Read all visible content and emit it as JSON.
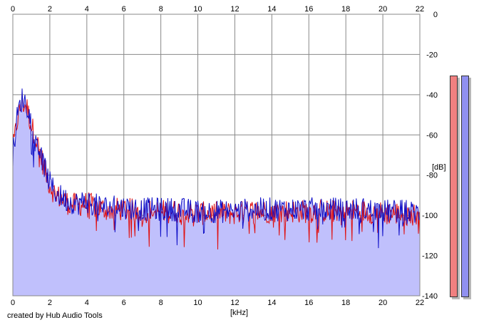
{
  "credit": "created by Hub Audio Tools",
  "colors": {
    "left_channel": "#e01010",
    "right_channel": "#1010c8",
    "fill": "#c0c0fc",
    "grid": "#888888",
    "meter_left": "#f08080",
    "meter_right": "#9090f0"
  },
  "meters": {
    "left_level_fraction": 1.0,
    "right_level_fraction": 1.0
  },
  "chart_data": {
    "type": "line",
    "title": "",
    "xlabel": "[kHz]",
    "ylabel": "[dB]",
    "xlim": [
      0,
      22
    ],
    "ylim": [
      -140,
      0
    ],
    "x_ticks": [
      "0",
      "2",
      "4",
      "6",
      "8",
      "10",
      "12",
      "14",
      "16",
      "18",
      "20",
      "22"
    ],
    "y_ticks": [
      "0",
      "-20",
      "-40",
      "-60",
      "-80",
      "-100",
      "-120",
      "-140"
    ],
    "grid": true,
    "legend": "none",
    "series": [
      {
        "x": [
          0,
          0.25,
          0.5,
          0.75,
          1.0,
          1.25,
          1.5,
          1.75,
          2.0,
          2.25,
          2.5,
          3.0,
          3.5,
          4.0,
          4.5,
          5.0,
          6.0,
          7.0,
          8.0,
          9.0,
          10.0,
          11.0,
          12.0,
          13.0,
          14.0,
          15.0,
          16.0,
          17.0,
          18.0,
          19.0,
          20.0,
          21.0,
          22.0
        ],
        "y": [
          -68,
          -52,
          -44,
          -46,
          -55,
          -62,
          -70,
          -78,
          -85,
          -89,
          -91,
          -94,
          -95,
          -94,
          -96,
          -97,
          -97,
          -98,
          -98,
          -98,
          -99,
          -99,
          -99,
          -98,
          -98,
          -98,
          -98,
          -98,
          -98,
          -98,
          -99,
          -99,
          -100
        ]
      },
      {
        "x": [
          0,
          0.25,
          0.5,
          0.75,
          1.0,
          1.25,
          1.5,
          1.75,
          2.0,
          2.25,
          2.5,
          3.0,
          3.5,
          4.0,
          4.5,
          5.0,
          6.0,
          7.0,
          8.0,
          9.0,
          10.0,
          11.0,
          12.0,
          13.0,
          14.0,
          15.0,
          16.0,
          17.0,
          18.0,
          19.0,
          20.0,
          21.0,
          22.0
        ],
        "y": [
          -70,
          -50,
          -42,
          -44,
          -54,
          -61,
          -69,
          -77,
          -84,
          -88,
          -90,
          -93,
          -94,
          -93,
          -95,
          -96,
          -96,
          -97,
          -97,
          -97,
          -98,
          -98,
          -98,
          -97,
          -97,
          -97,
          -97,
          -97,
          -97,
          -97,
          -98,
          -98,
          -99
        ]
      }
    ]
  }
}
